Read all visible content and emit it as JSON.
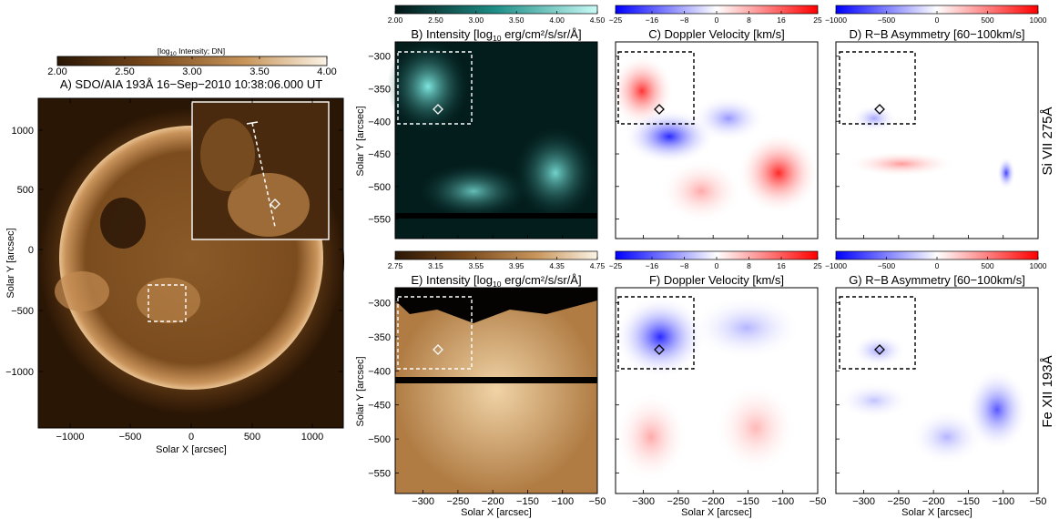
{
  "panel_a": {
    "title": "A) SDO/AIA 193Å 16−Sep−2010 10:38:06.000 UT",
    "colorbar_label": "[log",
    "colorbar_label_sub": "10",
    "colorbar_label_tail": " Intensity; DN]",
    "colorbar_ticks": [
      "2.00",
      "2.50",
      "3.00",
      "3.50",
      "4.00"
    ],
    "xlabel": "Solar X [arcsec]",
    "ylabel": "Solar Y [arcsec]",
    "xticks": [
      "−1000",
      "−500",
      "0",
      "500",
      "1000"
    ],
    "yticks": [
      "1000",
      "500",
      "0",
      "−500",
      "−1000"
    ]
  },
  "panel_b": {
    "title": "B) Intensity [log",
    "title_sub": "10",
    "title_tail": " erg/cm²/s/sr/Å]",
    "colorbar_ticks": [
      "2.00",
      "2.50",
      "3.00",
      "3.50",
      "4.00",
      "4.50"
    ]
  },
  "panel_c": {
    "title": "C) Doppler Velocity [km/s]",
    "colorbar_ticks": [
      "−25",
      "−16",
      "−8",
      "0",
      "8",
      "16",
      "25"
    ]
  },
  "panel_d": {
    "title": "D) R−B Asymmetry [60−100km/s]",
    "colorbar_ticks": [
      "−1000",
      "−500",
      "0",
      "500",
      "1000"
    ]
  },
  "panel_e": {
    "title": "E) Intensity [log",
    "title_sub": "10",
    "title_tail": " erg/cm²/s/sr/Å]",
    "colorbar_ticks": [
      "2.75",
      "3.15",
      "3.55",
      "3.95",
      "4.35",
      "4.75"
    ]
  },
  "panel_f": {
    "title": "F) Doppler Velocity [km/s]",
    "colorbar_ticks": [
      "−25",
      "−16",
      "−8",
      "0",
      "8",
      "16",
      "25"
    ]
  },
  "panel_g": {
    "title": "G) R−B Asymmetry [60−100km/s]",
    "colorbar_ticks": [
      "−1000",
      "−500",
      "0",
      "500",
      "1000"
    ]
  },
  "small_axes": {
    "xlabel": "Solar X [arcsec]",
    "ylabel": "Solar Y [arcsec]",
    "xticks": [
      "−300",
      "−250",
      "−200",
      "−150",
      "−100",
      "−50"
    ],
    "yticks": [
      "−300",
      "−350",
      "−400",
      "−450",
      "−500",
      "−550"
    ]
  },
  "row_labels": {
    "top": "Si VII 275Å",
    "bottom": "Fe XII 193Å"
  },
  "colors": {
    "sun_dark": "#2a1605",
    "sun_bright": "#f2d8ae",
    "teal": "#3fd6cc",
    "doppler_blue": "#1a1aff",
    "doppler_red": "#ff1a1a"
  }
}
